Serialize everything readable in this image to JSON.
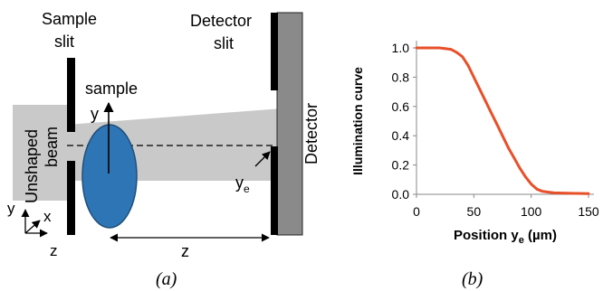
{
  "panel_a": {
    "labels": {
      "sample_slit_line1": "Sample",
      "sample_slit_line2": "slit",
      "detector_slit_line1": "Detector",
      "detector_slit_line2": "slit",
      "sample": "sample",
      "unshaped_beam_line1": "Unshaped",
      "unshaped_beam_line2": "beam",
      "detector": "Detector",
      "y_axis": "y",
      "ye": "y",
      "ye_sub": "e",
      "z_distance": "z",
      "axes_y": "y",
      "axes_x": "x",
      "axes_z": "z"
    },
    "caption": "(a)"
  },
  "panel_b": {
    "caption": "(b)"
  },
  "chart_data": {
    "type": "line",
    "title": "",
    "xlabel": "Position y",
    "xlabel_sub": "e",
    "xlabel_unit": " (µm)",
    "ylabel": "Illumination curve",
    "xlim": [
      0,
      150
    ],
    "ylim": [
      0,
      1.0
    ],
    "x_ticks": [
      0,
      50,
      100,
      150
    ],
    "y_ticks": [
      0.0,
      0.2,
      0.4,
      0.6,
      0.8,
      1.0
    ],
    "x_tick_labels": [
      "0",
      "50",
      "100",
      "150"
    ],
    "y_tick_labels": [
      "0.0",
      "0.2",
      "0.4",
      "0.6",
      "0.8",
      "1.0"
    ],
    "grid": false,
    "legend": "none",
    "color": "#e8502a",
    "series": [
      {
        "x": [
          0,
          10,
          20,
          25,
          30,
          35,
          40,
          45,
          50,
          55,
          60,
          65,
          70,
          75,
          80,
          85,
          90,
          95,
          100,
          105,
          110,
          115,
          120,
          130,
          140,
          150
        ],
        "values": [
          1.0,
          1.0,
          1.0,
          0.995,
          0.99,
          0.97,
          0.94,
          0.88,
          0.8,
          0.72,
          0.64,
          0.56,
          0.48,
          0.4,
          0.32,
          0.25,
          0.18,
          0.12,
          0.07,
          0.035,
          0.02,
          0.015,
          0.01,
          0.008,
          0.006,
          0.005
        ]
      }
    ]
  }
}
